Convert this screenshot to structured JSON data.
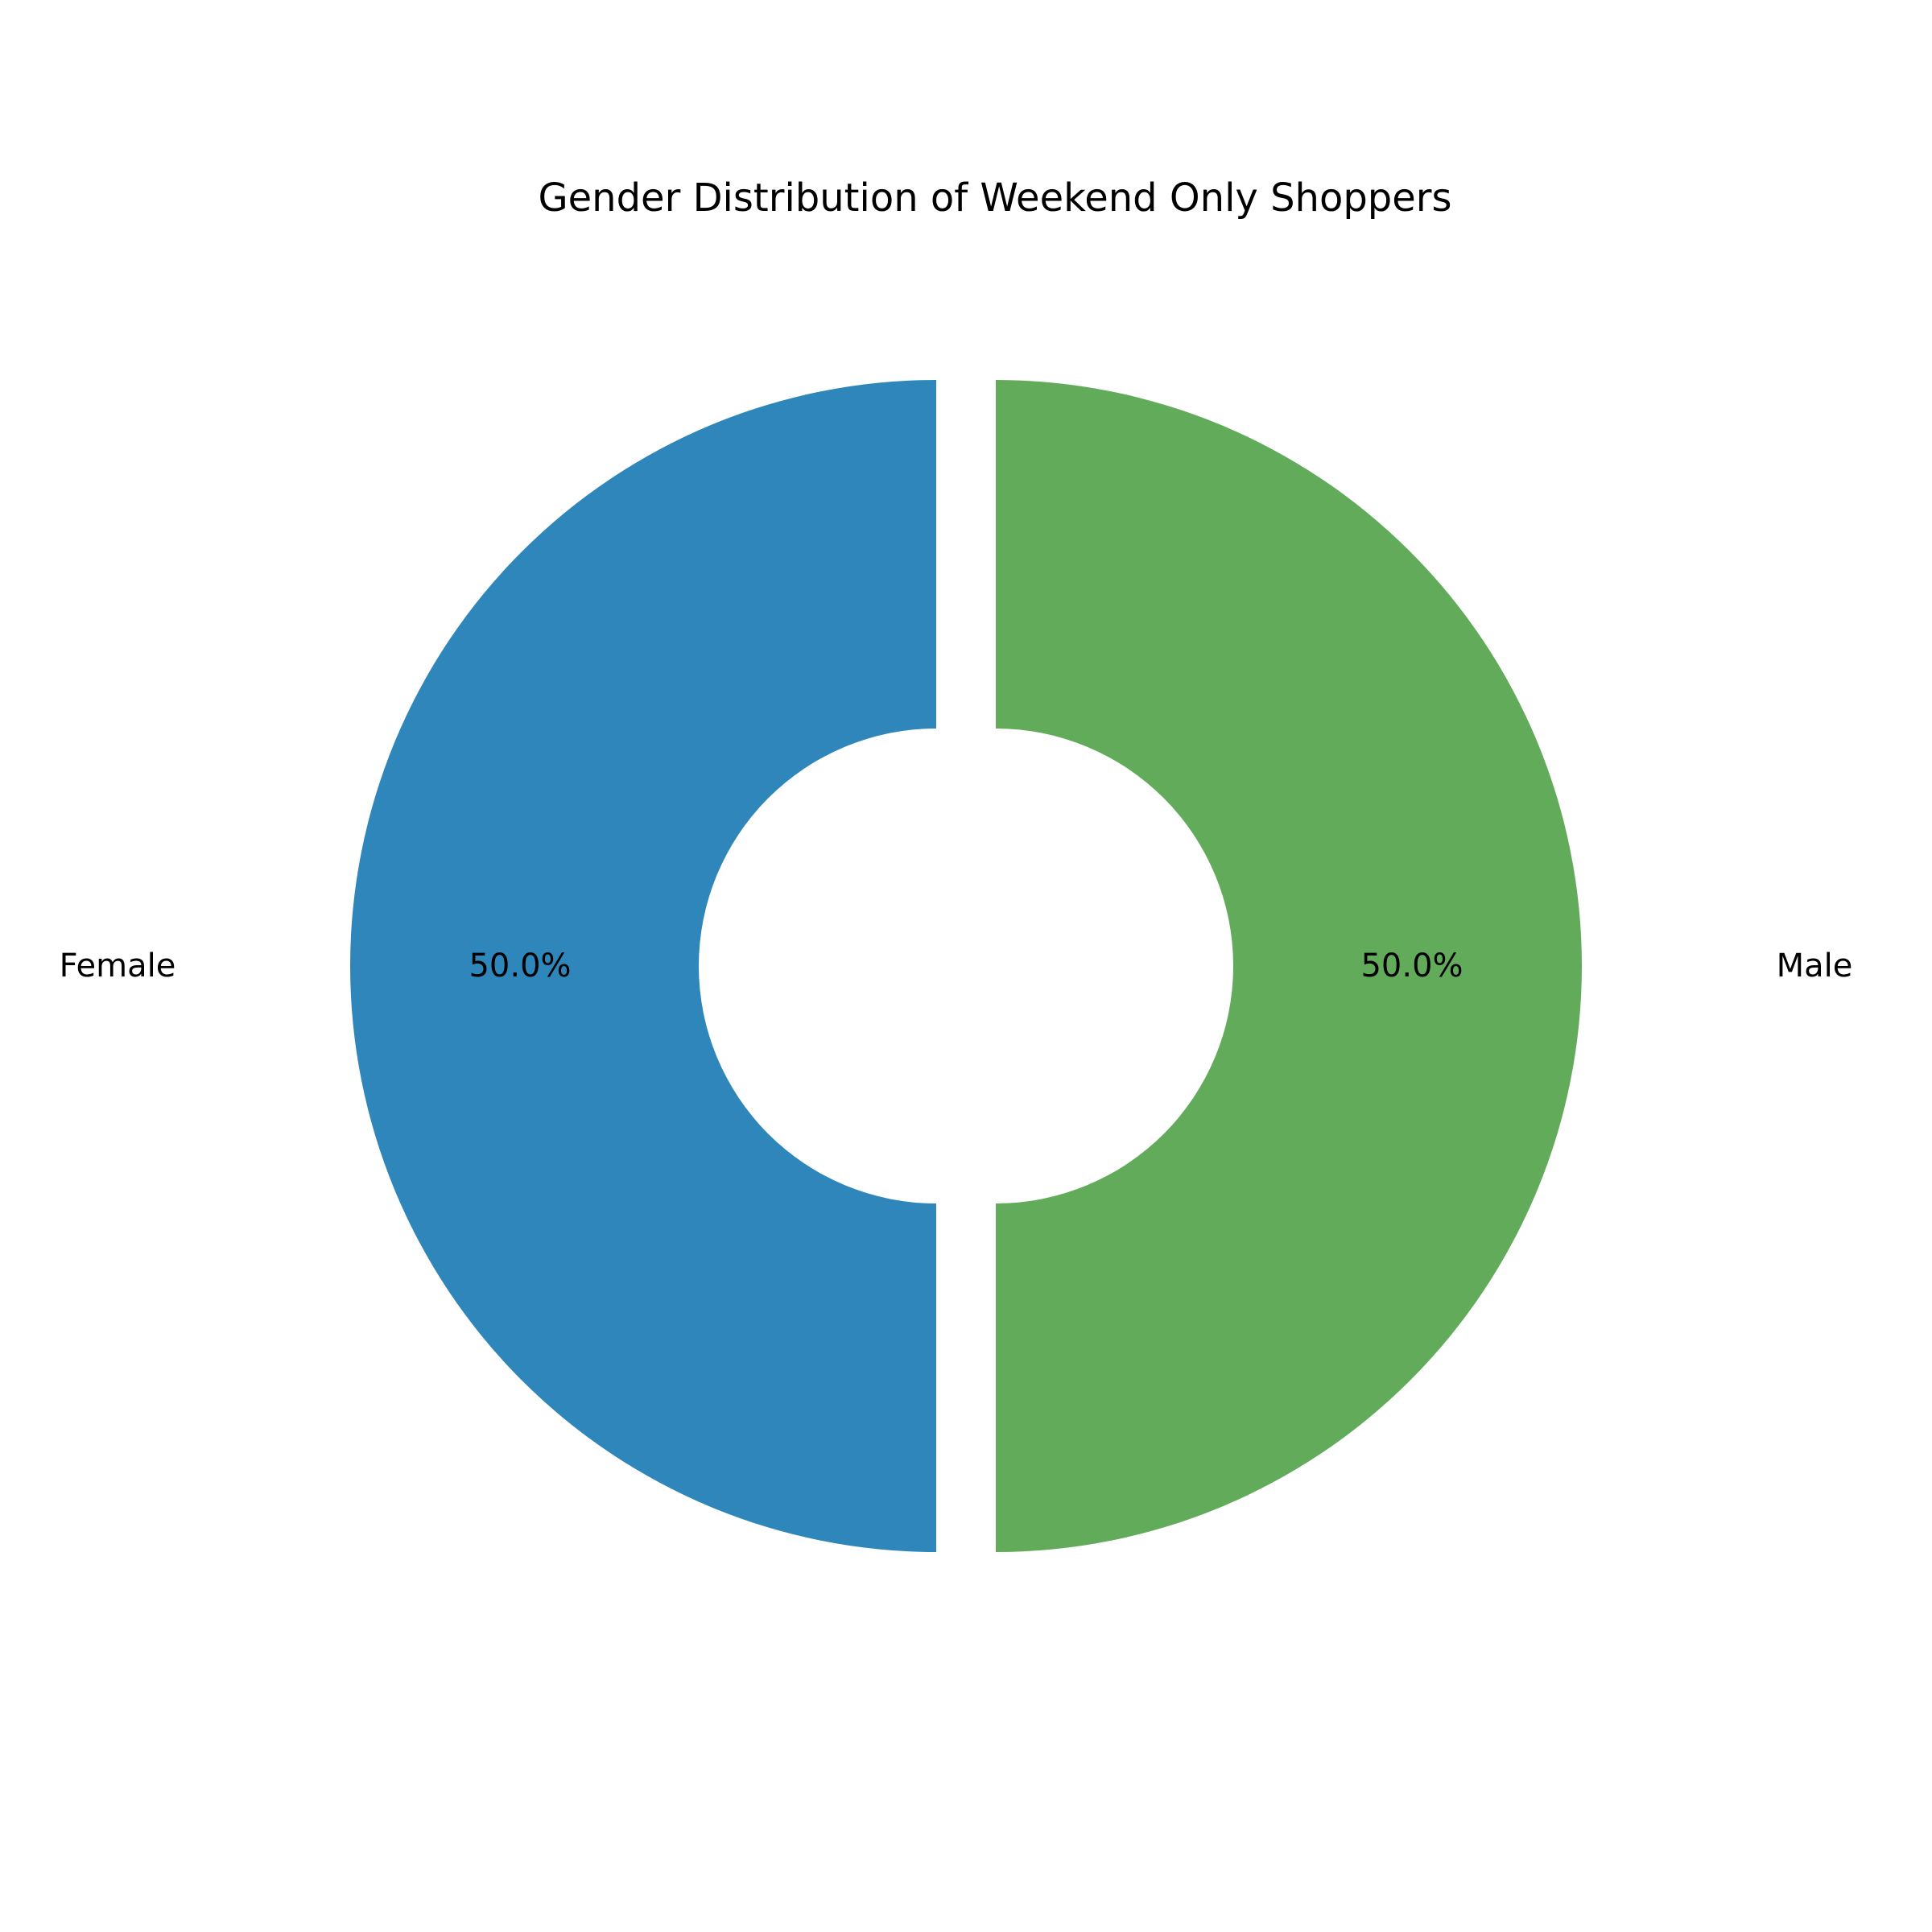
{
  "chart_data": {
    "type": "pie",
    "title": "Gender Distribution of Weekend Only Shoppers",
    "donut": true,
    "start_angle_deg": 90,
    "direction": "counterclockwise",
    "exploded": true,
    "slices": [
      {
        "label": "Female",
        "value": 50.0,
        "percent_label": "50.0%",
        "color": "#2e86bb"
      },
      {
        "label": "Male",
        "value": 50.0,
        "percent_label": "50.0%",
        "color": "#62ab5b"
      }
    ]
  }
}
